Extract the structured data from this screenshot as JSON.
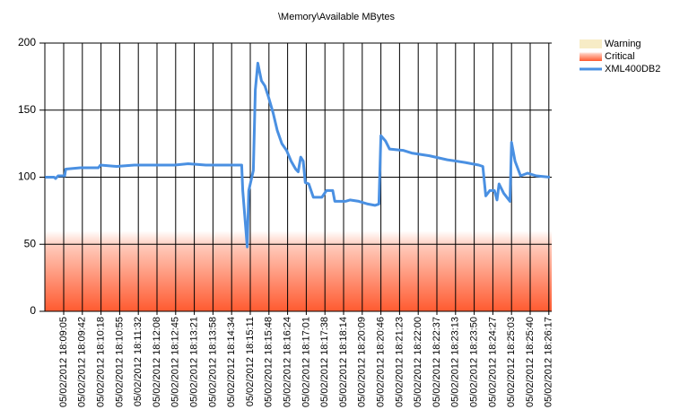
{
  "chart_data": {
    "type": "line",
    "title": "\\Memory\\Available MBytes",
    "categories": [
      "05/02/2012 18:09:05",
      "05/02/2012 18:09:42",
      "05/02/2012 18:10:18",
      "05/02/2012 18:10:55",
      "05/02/2012 18:11:32",
      "05/02/2012 18:12:08",
      "05/02/2012 18:12:45",
      "05/02/2012 18:13:21",
      "05/02/2012 18:13:58",
      "05/02/2012 18:14:34",
      "05/02/2012 18:15:11",
      "05/02/2012 18:15:48",
      "05/02/2012 18:16:24",
      "05/02/2012 18:17:01",
      "05/02/2012 18:17:38",
      "05/02/2012 18:18:14",
      "05/02/2012 18:20:09",
      "05/02/2012 18:20:46",
      "05/02/2012 18:21:23",
      "05/02/2012 18:22:00",
      "05/02/2012 18:22:37",
      "05/02/2012 18:23:13",
      "05/02/2012 18:23:50",
      "05/02/2012 18:24:27",
      "05/02/2012 18:25:03",
      "05/02/2012 18:25:40",
      "05/02/2012 18:26:17"
    ],
    "x": [
      "05/02/2012 18:08:28",
      "05/02/2012 18:08:46",
      "05/02/2012 18:08:49",
      "05/02/2012 18:08:54",
      "05/02/2012 18:09:07",
      "05/02/2012 18:09:09",
      "05/02/2012 18:09:38",
      "05/02/2012 18:10:13",
      "05/02/2012 18:10:17",
      "05/02/2012 18:10:49",
      "05/02/2012 18:11:24",
      "05/02/2012 18:12:43",
      "05/02/2012 18:13:09",
      "05/02/2012 18:13:44",
      "05/02/2012 18:14:54",
      "05/02/2012 18:14:56",
      "05/02/2012 18:15:05",
      "05/02/2012 18:15:08",
      "05/02/2012 18:15:17",
      "05/02/2012 18:15:21",
      "05/02/2012 18:15:26",
      "05/02/2012 18:15:33",
      "05/02/2012 18:15:40",
      "05/02/2012 18:15:47",
      "05/02/2012 18:15:56",
      "05/02/2012 18:16:04",
      "05/02/2012 18:16:13",
      "05/02/2012 18:16:22",
      "05/02/2012 18:16:31",
      "05/02/2012 18:16:40",
      "05/02/2012 18:16:45",
      "05/02/2012 18:16:50",
      "05/02/2012 18:16:55",
      "05/02/2012 18:16:59",
      "05/02/2012 18:17:06",
      "05/02/2012 18:17:15",
      "05/02/2012 18:17:32",
      "05/02/2012 18:17:41",
      "05/02/2012 18:17:53",
      "05/02/2012 18:17:57",
      "05/02/2012 18:18:25",
      "05/02/2012 18:18:53",
      "05/02/2012 18:19:48",
      "05/02/2012 18:20:20",
      "05/02/2012 18:20:34",
      "05/02/2012 18:20:42",
      "05/02/2012 18:20:46",
      "05/02/2012 18:20:55",
      "05/02/2012 18:21:03",
      "05/02/2012 18:21:30",
      "05/02/2012 18:21:47",
      "05/02/2012 18:22:22",
      "05/02/2012 18:22:57",
      "05/02/2012 18:23:32",
      "05/02/2012 18:23:59",
      "05/02/2012 18:24:07",
      "05/02/2012 18:24:13",
      "05/02/2012 18:24:21",
      "05/02/2012 18:24:30",
      "05/02/2012 18:24:35",
      "05/02/2012 18:24:39",
      "05/02/2012 18:24:48",
      "05/02/2012 18:25:00",
      "05/02/2012 18:25:03",
      "05/02/2012 18:25:10",
      "05/02/2012 18:25:21",
      "05/02/2012 18:25:35",
      "05/02/2012 18:25:52",
      "05/02/2012 18:26:19"
    ],
    "series": [
      {
        "name": "XML400DB2",
        "color": "#4a90e2",
        "values": [
          100,
          100,
          99,
          101,
          101,
          106,
          107,
          107,
          109,
          108,
          109,
          109,
          110,
          109,
          109,
          90,
          48,
          90,
          105,
          165,
          185,
          172,
          168,
          160,
          148,
          135,
          125,
          120,
          112,
          106,
          104,
          115,
          112,
          96,
          95,
          85,
          85,
          90,
          90,
          82,
          82,
          83,
          82,
          80,
          79,
          80,
          131,
          127,
          121,
          120,
          118,
          116,
          113,
          111,
          109,
          108,
          86,
          90,
          90,
          83,
          95,
          88,
          82,
          126,
          112,
          101,
          103,
          101,
          100
        ]
      }
    ],
    "zones": [
      {
        "name": "Warning",
        "color": "#f7ecc6"
      },
      {
        "name": "Critical",
        "color": "#ff5a30",
        "range": [
          0,
          60
        ]
      }
    ],
    "ylim": [
      0,
      200
    ],
    "yticks": [
      0,
      50,
      100,
      150,
      200
    ],
    "grid": true
  }
}
